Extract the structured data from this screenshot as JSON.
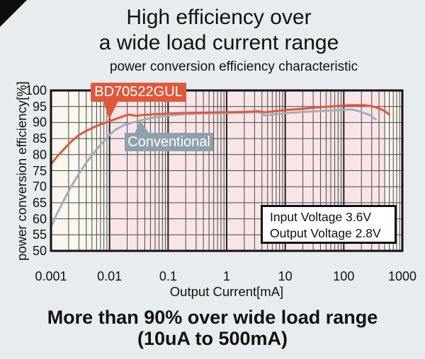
{
  "header": {
    "title_line1": "High efficiency over",
    "title_line2": "a wide load current range",
    "subtitle": "power conversion efficiency characteristic"
  },
  "chart_data": {
    "type": "line",
    "title": "power conversion efficiency characteristic",
    "xlabel": "Output Current[mA]",
    "ylabel": "power conversion efficiency[%]",
    "x_scale": "log",
    "xlim": [
      0.001,
      1000
    ],
    "ylim": [
      50,
      100
    ],
    "x_ticks": [
      0.001,
      0.01,
      0.1,
      1,
      10,
      100,
      1000
    ],
    "x_tick_labels": [
      "0.001",
      "0.01",
      "0.1",
      "1",
      "10",
      "100",
      "1000"
    ],
    "y_ticks": [
      50,
      55,
      60,
      65,
      70,
      75,
      80,
      85,
      90,
      95,
      100
    ],
    "grid": true,
    "grid_color": "#474747",
    "axis_color": "#111111",
    "plot_bg": "#f9f7ee",
    "highlight_band": {
      "x_from": 0.01,
      "x_to": 500,
      "color": "#f9e5e7"
    },
    "legend_position": "bottom-right-box",
    "series": [
      {
        "name": "BD70522GUL",
        "color": "#df583c",
        "points": [
          [
            0.001,
            77
          ],
          [
            0.0013,
            79.6
          ],
          [
            0.0017,
            81.9
          ],
          [
            0.0022,
            84
          ],
          [
            0.003,
            86.1
          ],
          [
            0.004,
            87.4
          ],
          [
            0.006,
            88.9
          ],
          [
            0.008,
            89.8
          ],
          [
            0.01,
            90.4
          ],
          [
            0.013,
            91.2
          ],
          [
            0.018,
            92.1
          ],
          [
            0.022,
            92.5
          ],
          [
            0.028,
            92.1
          ],
          [
            0.04,
            92.4
          ],
          [
            0.06,
            92.6
          ],
          [
            0.1,
            92.8
          ],
          [
            0.2,
            93.0
          ],
          [
            0.5,
            93.1
          ],
          [
            1,
            93.2
          ],
          [
            2,
            93.3
          ],
          [
            3.5,
            93.5
          ],
          [
            4.5,
            93.2
          ],
          [
            7,
            93.6
          ],
          [
            10,
            93.9
          ],
          [
            20,
            94.3
          ],
          [
            40,
            94.8
          ],
          [
            70,
            95.1
          ],
          [
            100,
            95.3
          ],
          [
            150,
            95.45
          ],
          [
            220,
            95.4
          ],
          [
            300,
            95.1
          ],
          [
            400,
            94.4
          ],
          [
            500,
            93.6
          ],
          [
            600,
            92.5
          ]
        ]
      },
      {
        "name": "Conventional",
        "color": "#a3aebb",
        "points": [
          [
            0.001,
            57.5
          ],
          [
            0.0013,
            62
          ],
          [
            0.0017,
            66.2
          ],
          [
            0.0022,
            70
          ],
          [
            0.003,
            74
          ],
          [
            0.004,
            77.5
          ],
          [
            0.006,
            81.6
          ],
          [
            0.008,
            84.3
          ],
          [
            0.01,
            86.2
          ],
          [
            0.013,
            87.9
          ],
          [
            0.018,
            89.3
          ],
          [
            0.025,
            90.0
          ],
          [
            0.035,
            90.7
          ],
          [
            0.05,
            91.4
          ],
          [
            0.08,
            92.0
          ],
          [
            0.1,
            92.2
          ],
          [
            0.2,
            92.6
          ],
          [
            0.5,
            92.9
          ],
          [
            1,
            93.0
          ],
          [
            2,
            93.1
          ],
          [
            3.5,
            93.3
          ],
          [
            4.5,
            92.2
          ],
          [
            7,
            92.6
          ],
          [
            10,
            92.9
          ],
          [
            20,
            93.3
          ],
          [
            40,
            93.6
          ],
          [
            70,
            93.8
          ],
          [
            100,
            94.0
          ],
          [
            140,
            94.1
          ],
          [
            200,
            93.3
          ],
          [
            280,
            92.3
          ],
          [
            350,
            91.0
          ]
        ]
      }
    ]
  },
  "annotations": {
    "series1_label": "BD70522GUL",
    "series1_box_color": "#df583c",
    "series2_label": "Conventional",
    "series2_box_color": "#8da0ac",
    "legend_line1": "Input Voltage 3.6V",
    "legend_line2": "Output Voltage 2.8V"
  },
  "footer": {
    "line1": "More than 90% over wide load range",
    "line2": "(10uA to 500mA)"
  },
  "colors": {
    "page_background": "#e8ecee",
    "text": "#111111",
    "corner_triangle": "#0d0d0d"
  }
}
